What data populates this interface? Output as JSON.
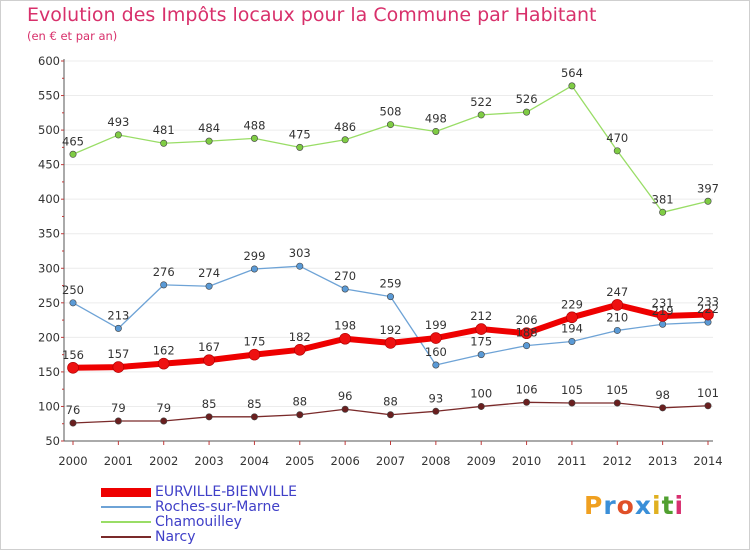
{
  "title": "Evolution des Impôts locaux pour la Commune par Habitant",
  "subtitle": "(en € et par an)",
  "brand": "Proxiti",
  "colors": {
    "title": "#d8306b",
    "axis": "#c03a3a",
    "grid": "#ececec"
  },
  "chart_data": {
    "type": "line",
    "title": "Evolution des Impôts locaux pour la Commune par Habitant",
    "subtitle": "(en € et par an)",
    "x": [
      "2000",
      "2001",
      "2002",
      "2003",
      "2004",
      "2005",
      "2006",
      "2007",
      "2008",
      "2009",
      "2010",
      "2011",
      "2012",
      "2013",
      "2014"
    ],
    "ylim": [
      50,
      600
    ],
    "yticks": [
      50,
      100,
      150,
      200,
      250,
      300,
      350,
      400,
      450,
      500,
      550,
      600
    ],
    "grid": true,
    "legend_position": "bottom-left",
    "series": [
      {
        "name": "EURVILLE-BIENVILLE",
        "color": "#ee0000",
        "marker": "#ee1111",
        "width": 6,
        "values": [
          156,
          157,
          162,
          167,
          175,
          182,
          198,
          192,
          199,
          212,
          206,
          229,
          247,
          231,
          233
        ]
      },
      {
        "name": "Roches-sur-Marne",
        "color": "#6ea3d6",
        "marker": "#5a9ad6",
        "width": 1.3,
        "values": [
          250,
          213,
          276,
          274,
          299,
          303,
          270,
          259,
          160,
          175,
          188,
          194,
          210,
          219,
          222
        ]
      },
      {
        "name": "Chamouilley",
        "color": "#99dd66",
        "marker": "#7fcc44",
        "width": 1.3,
        "values": [
          465,
          493,
          481,
          484,
          488,
          475,
          486,
          508,
          498,
          522,
          526,
          564,
          470,
          381,
          397
        ]
      },
      {
        "name": "Narcy",
        "color": "#7a2a2a",
        "marker": "#6a1f1f",
        "width": 1.3,
        "values": [
          76,
          79,
          79,
          85,
          85,
          88,
          96,
          88,
          93,
          100,
          106,
          105,
          105,
          98,
          101
        ]
      }
    ]
  }
}
